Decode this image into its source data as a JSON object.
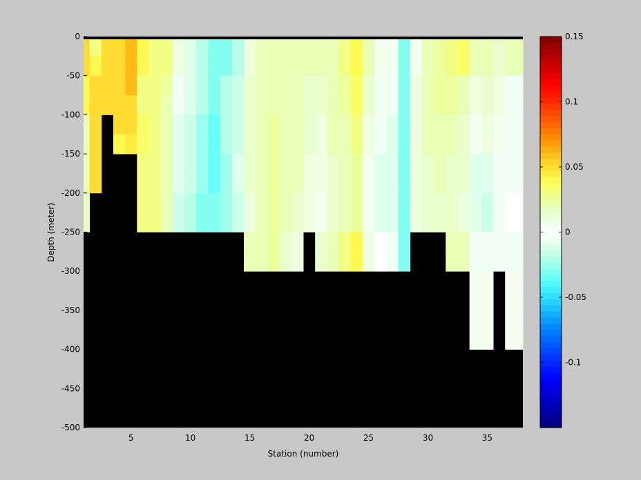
{
  "chart_data": {
    "type": "heatmap",
    "title": "",
    "xlabel": "Station (number)",
    "ylabel": "Depth (meter)",
    "xlim": [
      1,
      38
    ],
    "ylim": [
      -500,
      0
    ],
    "xticks": [
      5,
      10,
      15,
      20,
      25,
      30,
      35
    ],
    "xtick_labels": [
      "5",
      "10",
      "15",
      "20",
      "25",
      "30",
      "35"
    ],
    "yticks": [
      0,
      -50,
      -100,
      -150,
      -200,
      -250,
      -300,
      -350,
      -400,
      -450,
      -500
    ],
    "ytick_labels": [
      "0",
      "-50",
      "-100",
      "-150",
      "-200",
      "-250",
      "-300",
      "-350",
      "-400",
      "-450",
      "-500"
    ],
    "colormap": "jet with white center",
    "clim": [
      -0.15,
      0.15
    ],
    "colorbar_ticks": [
      0.15,
      0.1,
      0.05,
      0,
      -0.05,
      -0.1
    ],
    "colorbar_labels": [
      "0.15",
      "0.1",
      "0.05",
      "0",
      "-0.05",
      "-0.1"
    ],
    "land_color": "#000000",
    "background_color": "#c8c8c8",
    "stations": [
      1,
      2,
      3,
      4,
      5,
      6,
      7,
      8,
      9,
      10,
      11,
      12,
      13,
      14,
      15,
      16,
      17,
      18,
      19,
      20,
      21,
      22,
      23,
      24,
      25,
      26,
      27,
      28,
      29,
      30,
      31,
      32,
      33,
      34,
      35,
      36,
      37
    ],
    "depth_bins": [
      [
        0,
        -25
      ],
      [
        -25,
        -50
      ],
      [
        -50,
        -75
      ],
      [
        -75,
        -100
      ],
      [
        -100,
        -125
      ],
      [
        -125,
        -150
      ],
      [
        -150,
        -175
      ],
      [
        -175,
        -200
      ],
      [
        -200,
        -225
      ],
      [
        -225,
        -250
      ],
      [
        -250,
        -275
      ],
      [
        -275,
        -300
      ],
      [
        -300,
        -325
      ],
      [
        -325,
        -350
      ],
      [
        -350,
        -375
      ],
      [
        -375,
        -400
      ]
    ],
    "bottom_depth": [
      -250,
      -200,
      -75,
      -150,
      -250,
      -250,
      -250,
      -250,
      -250,
      -250,
      -250,
      -250,
      -250,
      -250,
      -300,
      -300,
      -300,
      -300,
      -300,
      -250,
      -300,
      -300,
      -300,
      -300,
      -300,
      -300,
      -300,
      -250,
      -250,
      -250,
      -300,
      -300,
      -300,
      -400,
      -400,
      -300,
      -400
    ],
    "values": [
      [
        0.05,
        0.03,
        0.05,
        0.05,
        0.06,
        0.04,
        0.03,
        0.03,
        0.01,
        -0.01,
        -0.02,
        -0.03,
        -0.03,
        -0.02,
        0.01,
        0.02,
        0.02,
        0.02,
        0.02,
        0.02,
        0.02,
        0.02,
        0.03,
        0.04,
        0.02,
        0.005,
        0.005,
        -0.03,
        0.005,
        0.02,
        0.025,
        0.03,
        0.035,
        0.02,
        0.02,
        0.015,
        0.02
      ],
      [
        0.05,
        0.04,
        0.05,
        0.05,
        0.06,
        0.04,
        0.03,
        0.03,
        0.01,
        -0.01,
        -0.02,
        -0.03,
        -0.03,
        -0.02,
        0.01,
        0.02,
        0.02,
        0.02,
        0.02,
        0.02,
        0.02,
        0.02,
        0.03,
        0.04,
        0.02,
        0.005,
        0.005,
        -0.03,
        0.005,
        0.02,
        0.025,
        0.03,
        0.035,
        0.02,
        0.02,
        0.015,
        0.02
      ],
      [
        0.04,
        0.05,
        0.05,
        0.05,
        0.06,
        0.03,
        0.03,
        0.025,
        -0.005,
        -0.01,
        -0.02,
        -0.03,
        -0.02,
        -0.015,
        0.015,
        0.02,
        0.02,
        0.02,
        0.02,
        0.015,
        0.015,
        0.02,
        0.025,
        0.035,
        0.015,
        -0.005,
        -0.005,
        -0.03,
        0.01,
        0.02,
        0.025,
        0.025,
        0.02,
        0.01,
        0.015,
        0.01,
        -0.005
      ],
      [
        0.04,
        0.05,
        0.05,
        0.05,
        0.05,
        0.03,
        0.03,
        0.02,
        -0.005,
        -0.01,
        -0.02,
        -0.03,
        -0.02,
        -0.015,
        0.015,
        0.02,
        0.02,
        0.02,
        0.02,
        0.015,
        0.015,
        0.02,
        0.025,
        0.035,
        0.015,
        -0.005,
        -0.005,
        -0.03,
        0.01,
        0.02,
        0.025,
        0.025,
        0.02,
        0.01,
        0.015,
        0.01,
        -0.005
      ],
      [
        0.02,
        0.05,
        null,
        0.05,
        0.05,
        0.035,
        0.03,
        0.02,
        -0.01,
        -0.015,
        -0.025,
        -0.035,
        -0.02,
        -0.015,
        0.015,
        0.02,
        0.025,
        0.02,
        0.02,
        0.015,
        0.01,
        0.02,
        0.02,
        0.03,
        0.01,
        -0.005,
        -0.01,
        -0.03,
        0.01,
        0.02,
        0.02,
        0.02,
        0.015,
        0.005,
        0.01,
        0.005,
        -0.005
      ],
      [
        0.02,
        0.05,
        null,
        0.04,
        0.045,
        0.035,
        0.03,
        0.02,
        -0.01,
        -0.015,
        -0.025,
        -0.035,
        -0.02,
        -0.015,
        0.015,
        0.02,
        0.025,
        0.02,
        0.02,
        0.015,
        0.01,
        0.02,
        0.02,
        0.03,
        0.01,
        -0.005,
        -0.01,
        -0.03,
        0.01,
        0.02,
        0.02,
        0.02,
        0.015,
        0.005,
        0.01,
        0.005,
        -0.005
      ],
      [
        0.02,
        0.05,
        null,
        null,
        null,
        0.03,
        0.03,
        0.02,
        -0.01,
        -0.015,
        -0.025,
        -0.035,
        -0.025,
        -0.01,
        0.015,
        0.02,
        0.025,
        0.02,
        0.02,
        0.01,
        0.01,
        0.015,
        0.02,
        0.025,
        0.005,
        -0.01,
        -0.01,
        -0.03,
        0.01,
        0.015,
        0.02,
        0.015,
        0.015,
        -0.01,
        -0.01,
        -0.005,
        -0.005
      ],
      [
        0.02,
        0.05,
        null,
        null,
        null,
        0.03,
        0.03,
        0.02,
        -0.01,
        -0.015,
        -0.025,
        -0.035,
        -0.025,
        -0.01,
        0.015,
        0.02,
        0.025,
        0.02,
        0.02,
        0.01,
        0.01,
        0.015,
        0.02,
        0.025,
        0.005,
        -0.01,
        -0.01,
        -0.03,
        0.01,
        0.015,
        0.02,
        0.015,
        0.015,
        -0.01,
        -0.01,
        -0.005,
        -0.005
      ],
      [
        0.02,
        null,
        null,
        null,
        null,
        0.03,
        0.03,
        0.02,
        -0.015,
        -0.02,
        -0.03,
        -0.03,
        -0.025,
        -0.015,
        0.01,
        0.02,
        0.025,
        0.02,
        0.015,
        0.01,
        0.005,
        0.015,
        0.02,
        0.025,
        0.005,
        -0.01,
        -0.01,
        -0.03,
        0.01,
        0.015,
        0.015,
        0.015,
        0.01,
        -0.01,
        -0.015,
        -0.005,
        0.0
      ],
      [
        0.02,
        null,
        null,
        null,
        null,
        0.03,
        0.03,
        0.02,
        -0.015,
        -0.02,
        -0.03,
        -0.03,
        -0.025,
        -0.015,
        0.01,
        0.02,
        0.025,
        0.02,
        0.015,
        0.01,
        0.005,
        0.015,
        0.02,
        0.025,
        0.005,
        -0.01,
        -0.01,
        -0.03,
        0.01,
        0.015,
        0.015,
        0.015,
        0.01,
        -0.01,
        -0.015,
        -0.005,
        0.0
      ],
      [
        null,
        null,
        null,
        null,
        null,
        null,
        null,
        null,
        null,
        null,
        null,
        null,
        null,
        null,
        0.02,
        0.02,
        0.025,
        0.015,
        0.01,
        null,
        0.015,
        0.02,
        0.03,
        0.04,
        0.01,
        0.0,
        -0.005,
        -0.03,
        null,
        null,
        null,
        0.02,
        0.02,
        -0.005,
        -0.005,
        -0.005,
        -0.005
      ],
      [
        null,
        null,
        null,
        null,
        null,
        null,
        null,
        null,
        null,
        null,
        null,
        null,
        null,
        null,
        0.02,
        0.02,
        0.025,
        0.015,
        0.01,
        null,
        0.015,
        0.02,
        0.03,
        0.04,
        0.01,
        0.0,
        -0.005,
        -0.03,
        null,
        null,
        null,
        0.02,
        0.02,
        -0.005,
        -0.005,
        -0.005,
        -0.005
      ],
      [
        null,
        null,
        null,
        null,
        null,
        null,
        null,
        null,
        null,
        null,
        null,
        null,
        null,
        null,
        null,
        null,
        null,
        null,
        null,
        null,
        null,
        null,
        null,
        null,
        null,
        null,
        null,
        null,
        null,
        null,
        null,
        null,
        null,
        0.005,
        0.005,
        null,
        0.005
      ],
      [
        null,
        null,
        null,
        null,
        null,
        null,
        null,
        null,
        null,
        null,
        null,
        null,
        null,
        null,
        null,
        null,
        null,
        null,
        null,
        null,
        null,
        null,
        null,
        null,
        null,
        null,
        null,
        null,
        null,
        null,
        null,
        null,
        null,
        0.005,
        0.005,
        null,
        0.005
      ],
      [
        null,
        null,
        null,
        null,
        null,
        null,
        null,
        null,
        null,
        null,
        null,
        null,
        null,
        null,
        null,
        null,
        null,
        null,
        null,
        null,
        null,
        null,
        null,
        null,
        null,
        null,
        null,
        null,
        null,
        null,
        null,
        null,
        null,
        0.005,
        0.005,
        null,
        0.005
      ],
      [
        null,
        null,
        null,
        null,
        null,
        null,
        null,
        null,
        null,
        null,
        null,
        null,
        null,
        null,
        null,
        null,
        null,
        null,
        null,
        null,
        null,
        null,
        null,
        null,
        null,
        null,
        null,
        null,
        null,
        null,
        null,
        null,
        null,
        0.005,
        0.005,
        null,
        0.005
      ]
    ]
  }
}
